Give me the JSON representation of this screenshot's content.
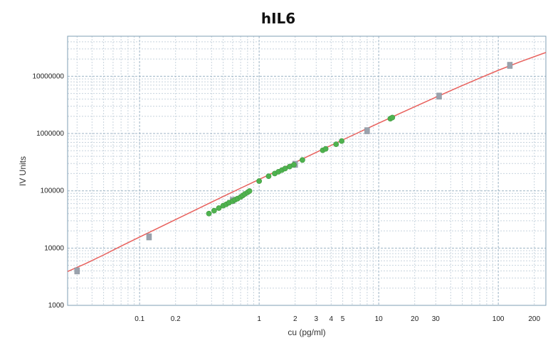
{
  "chart_data": {
    "type": "scatter",
    "title": "hIL6",
    "xlabel": "cu (pg/ml)",
    "ylabel": "IV Units",
    "x_scale": "log",
    "y_scale": "log",
    "xlim": [
      0.025,
      250
    ],
    "ylim": [
      1000,
      50000000
    ],
    "grid": true,
    "x_ticks": [
      {
        "value": 0.1,
        "label": "0.1"
      },
      {
        "value": 0.2,
        "label": "0.2"
      },
      {
        "value": 1,
        "label": "1"
      },
      {
        "value": 2,
        "label": "2"
      },
      {
        "value": 3,
        "label": "3"
      },
      {
        "value": 4,
        "label": "4"
      },
      {
        "value": 5,
        "label": "5"
      },
      {
        "value": 10,
        "label": "10"
      },
      {
        "value": 20,
        "label": "20"
      },
      {
        "value": 30,
        "label": "30"
      },
      {
        "value": 100,
        "label": "100"
      },
      {
        "value": 200,
        "label": "200"
      }
    ],
    "y_ticks": [
      {
        "value": 1000,
        "label": "1000"
      },
      {
        "value": 10000,
        "label": "10000"
      },
      {
        "value": 100000,
        "label": "100000"
      },
      {
        "value": 1000000,
        "label": "1000000"
      },
      {
        "value": 10000000,
        "label": "10000000"
      }
    ],
    "series": [
      {
        "type": "line",
        "color": "#e8605c",
        "x": [
          0.025,
          0.035,
          0.05,
          0.07,
          0.1,
          0.15,
          0.2,
          0.3,
          0.5,
          0.7,
          1,
          1.5,
          2,
          3,
          5,
          7,
          10,
          15,
          20,
          30,
          50,
          70,
          100,
          150,
          250
        ],
        "y": [
          3900,
          5300,
          7600,
          10800,
          15600,
          23500,
          31500,
          47500,
          79500,
          111000,
          158000,
          236000,
          313000,
          468000,
          774000,
          1075000,
          1520000,
          2240000,
          2940000,
          4300000,
          6900000,
          9300000,
          12700000,
          17700000,
          26000000
        ]
      },
      {
        "type": "scatter",
        "marker": "square",
        "color": "#9aa2ad",
        "x": [
          0.03,
          0.12,
          0.6,
          2.0,
          8.0,
          32,
          125
        ],
        "y": [
          4000,
          15700,
          68000,
          290000,
          1120000,
          4500000,
          15500000
        ]
      },
      {
        "type": "scatter",
        "marker": "circle",
        "color": "#4fb24f",
        "x": [
          0.38,
          0.42,
          0.46,
          0.5,
          0.53,
          0.56,
          0.6,
          0.63,
          0.66,
          0.7,
          0.73,
          0.76,
          0.8,
          0.83,
          1.0,
          1.2,
          1.35,
          1.45,
          1.55,
          1.65,
          1.8,
          1.95,
          2.3,
          3.4,
          3.6,
          4.4,
          4.9,
          12.5,
          13.0
        ],
        "y": [
          40000,
          45000,
          50000,
          55000,
          58000,
          62000,
          66000,
          70000,
          73000,
          78000,
          83000,
          88000,
          94000,
          99000,
          148000,
          180000,
          200000,
          215000,
          230000,
          245000,
          265000,
          285000,
          345000,
          510000,
          540000,
          650000,
          740000,
          1820000,
          1900000
        ]
      }
    ]
  }
}
